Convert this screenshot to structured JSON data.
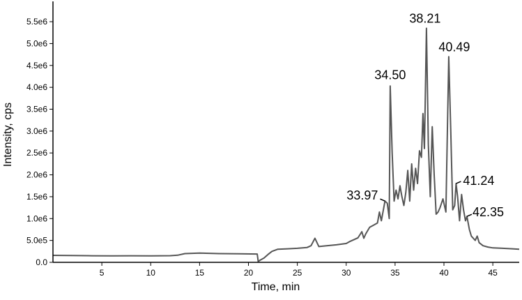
{
  "chart_data": {
    "type": "line",
    "title": "",
    "xlabel": "Time, min",
    "ylabel": "Intensity, cps",
    "xlim": [
      0,
      47.7
    ],
    "ylim": [
      0,
      5900000.0
    ],
    "grid": false,
    "line_color": "#555555",
    "x_ticks": [
      {
        "value": 5,
        "label": "5"
      },
      {
        "value": 10,
        "label": "10"
      },
      {
        "value": 15,
        "label": "15"
      },
      {
        "value": 20,
        "label": "20"
      },
      {
        "value": 25,
        "label": "25"
      },
      {
        "value": 30,
        "label": "30"
      },
      {
        "value": 35,
        "label": "35"
      },
      {
        "value": 40,
        "label": "40"
      },
      {
        "value": 45,
        "label": "45"
      }
    ],
    "y_ticks": [
      {
        "value": 0,
        "label": "0.0"
      },
      {
        "value": 500000,
        "label": "5.0e5"
      },
      {
        "value": 1000000,
        "label": "1.0e6"
      },
      {
        "value": 1500000,
        "label": "1.5e6"
      },
      {
        "value": 2000000,
        "label": "2.0e6"
      },
      {
        "value": 2500000,
        "label": "2.5e6"
      },
      {
        "value": 3000000,
        "label": "3.0e6"
      },
      {
        "value": 3500000,
        "label": "3.5e6"
      },
      {
        "value": 4000000,
        "label": "4.0e6"
      },
      {
        "value": 4500000,
        "label": "4.5e6"
      },
      {
        "value": 5000000,
        "label": "5.0e6"
      },
      {
        "value": 5500000,
        "label": "5.5e6"
      }
    ],
    "series": [
      {
        "x": [
          0,
          2,
          4,
          6,
          8,
          10,
          12,
          12.8,
          13.5,
          15,
          17,
          19,
          20.9,
          21.0,
          21.2,
          21.6,
          22.0,
          22.4,
          23,
          24,
          25,
          26,
          26.4,
          26.8,
          27.2,
          28,
          29,
          29.6,
          30,
          30.4,
          30.8,
          31.2,
          31.6,
          31.8,
          32.0,
          32.4,
          32.8,
          33.2,
          33.4,
          33.6,
          33.97,
          34.2,
          34.4,
          34.5,
          34.7,
          34.9,
          35.1,
          35.3,
          35.5,
          35.7,
          35.9,
          36.1,
          36.3,
          36.5,
          36.7,
          36.9,
          37.1,
          37.3,
          37.5,
          37.7,
          37.85,
          38.0,
          38.21,
          38.4,
          38.6,
          38.8,
          39.0,
          39.2,
          39.4,
          39.6,
          39.9,
          40.2,
          40.49,
          40.7,
          40.9,
          41.1,
          41.24,
          41.4,
          41.6,
          41.8,
          42.0,
          42.2,
          42.35,
          42.6,
          42.8,
          43.0,
          43.2,
          43.4,
          43.6,
          44,
          44.5,
          45,
          46,
          47,
          47.7
        ],
        "y": [
          160000,
          155000,
          150000,
          148000,
          150000,
          148000,
          152000,
          165000,
          200000,
          210000,
          200000,
          195000,
          190000,
          20000,
          50000,
          100000,
          180000,
          250000,
          300000,
          310000,
          320000,
          340000,
          380000,
          550000,
          360000,
          380000,
          400000,
          420000,
          430000,
          480000,
          520000,
          560000,
          700000,
          550000,
          650000,
          800000,
          850000,
          900000,
          1150000,
          950000,
          1400000,
          1350000,
          1000000,
          4030000,
          2500000,
          1400000,
          1650000,
          1450000,
          1750000,
          1500000,
          1300000,
          1600000,
          2100000,
          1400000,
          2250000,
          1650000,
          2150000,
          1800000,
          2550000,
          2400000,
          3400000,
          2600000,
          5350000,
          2700000,
          1500000,
          3100000,
          2000000,
          1100000,
          1150000,
          1250000,
          1450000,
          1150000,
          4700000,
          3000000,
          1200000,
          1300000,
          1800000,
          1500000,
          950000,
          1550000,
          1200000,
          950000,
          1050000,
          750000,
          600000,
          550000,
          500000,
          600000,
          450000,
          380000,
          350000,
          330000,
          320000,
          310000,
          300000
        ]
      }
    ],
    "annotations": [
      {
        "text": "33.97",
        "x": 33.97,
        "y": 1400000
      },
      {
        "text": "34.50",
        "x": 34.5,
        "y": 4030000
      },
      {
        "text": "38.21",
        "x": 38.21,
        "y": 5350000
      },
      {
        "text": "40.49",
        "x": 40.49,
        "y": 4700000
      },
      {
        "text": "41.24",
        "x": 41.24,
        "y": 1800000
      },
      {
        "text": "42.35",
        "x": 42.35,
        "y": 1050000
      }
    ]
  }
}
